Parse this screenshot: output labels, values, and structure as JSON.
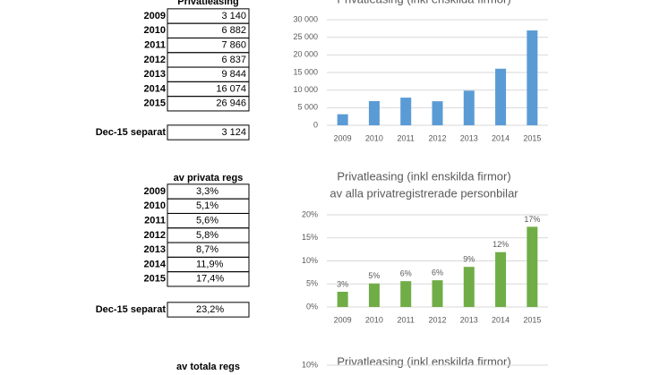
{
  "tables": [
    {
      "header": "Privatleasing",
      "rows": [
        [
          "2009",
          "3 140"
        ],
        [
          "2010",
          "6 882"
        ],
        [
          "2011",
          "7 860"
        ],
        [
          "2012",
          "6 837"
        ],
        [
          "2013",
          "9 844"
        ],
        [
          "2014",
          "16 074"
        ],
        [
          "2015",
          "26 946"
        ]
      ],
      "separate": [
        "Dec-15 separat",
        "3 124"
      ]
    },
    {
      "header": "av privata regs",
      "rows": [
        [
          "2009",
          "3,3%"
        ],
        [
          "2010",
          "5,1%"
        ],
        [
          "2011",
          "5,6%"
        ],
        [
          "2012",
          "5,8%"
        ],
        [
          "2013",
          "8,7%"
        ],
        [
          "2014",
          "11,9%"
        ],
        [
          "2015",
          "17,4%"
        ]
      ],
      "separate": [
        "Dec-15 separat",
        "23,2%"
      ]
    },
    {
      "header": "av totala regs"
    }
  ],
  "chart_data": [
    {
      "type": "bar",
      "title": "Privatleasing (inkl enskilda firmor)",
      "categories": [
        "2009",
        "2010",
        "2011",
        "2012",
        "2013",
        "2014",
        "2015"
      ],
      "values": [
        3140,
        6882,
        7860,
        6837,
        9844,
        16074,
        26946
      ],
      "color": "#5b9bd5",
      "ylim": [
        0,
        30000
      ],
      "yticks": [
        0,
        {
          "value": 5000,
          "label": "5 000"
        },
        {
          "value": 10000,
          "label": "10 000"
        },
        {
          "value": 15000,
          "label": "15 000"
        },
        {
          "value": 20000,
          "label": "20 000"
        },
        {
          "value": 25000,
          "label": "25 000"
        },
        {
          "value": 30000,
          "label": "30 000"
        }
      ],
      "grid": true
    },
    {
      "type": "bar",
      "title": "Privatleasing (inkl enskilda firmor)",
      "subtitle": "av alla privatregistrerade personbilar",
      "categories": [
        "2009",
        "2010",
        "2011",
        "2012",
        "2013",
        "2014",
        "2015"
      ],
      "values": [
        3.3,
        5.1,
        5.6,
        5.8,
        8.7,
        11.9,
        17.4
      ],
      "value_labels": [
        "3%",
        "5%",
        "6%",
        "6%",
        "9%",
        "12%",
        "17%"
      ],
      "color": "#70ad47",
      "ylim": [
        0,
        20
      ],
      "yticks": [
        {
          "value": 0,
          "label": "0%"
        },
        {
          "value": 5,
          "label": "5%"
        },
        {
          "value": 10,
          "label": "10%"
        },
        {
          "value": 15,
          "label": "15%"
        },
        {
          "value": 20,
          "label": "20%"
        }
      ],
      "grid": true
    },
    {
      "type": "bar",
      "title": "Privatleasing (inkl enskilda firmor)",
      "ylim": [
        0,
        10
      ],
      "yticks": [
        {
          "value": 10,
          "label": "10%"
        }
      ],
      "grid": true
    }
  ]
}
